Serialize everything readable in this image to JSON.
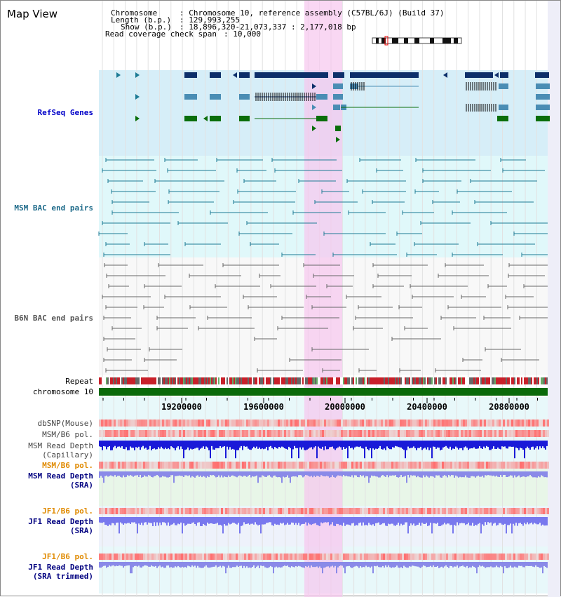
{
  "page": {
    "title": "Map View"
  },
  "info": {
    "chromosome_key": "Chromosome",
    "chromosome_val": ": Chromosome 10, reference assembly (C57BL/6J) (Build 37)",
    "length_key": "Length (b.p.)",
    "length_val": ": 129,993,255",
    "show_key": "Show (b.p.)",
    "show_val": ": 18,896,320-21,073,337 : 2,177,018 bp",
    "span_key": "Read coverage check span",
    "span_val": ": 10,000"
  },
  "tracks": {
    "refseq": "RefSeq Genes",
    "msm_bac": "MSM BAC end pairs",
    "b6n_bac": "B6N BAC end pairs",
    "repeat": "Repeat",
    "chromosome": "chromosome 10",
    "dbsnp": "dbSNP(Mouse)",
    "msm_b6_pol": "MSM/B6 pol.",
    "msm_depth_cap_1": "MSM Read Depth",
    "msm_depth_cap_2": "(Capillary)",
    "msm_b6_pol2": "MSM/B6 pol.",
    "msm_depth_sra_1": "MSM Read Depth",
    "msm_depth_sra_2": "(SRA)",
    "jf1_b6_pol": "JF1/B6 pol.",
    "jf1_depth_sra_1": "JF1 Read Depth",
    "jf1_depth_sra_2": "(SRA)",
    "jf1_b6_pol2": "JF1/B6 pol.",
    "jf1_depth_trim_1": "JF1 Read Depth",
    "jf1_depth_trim_2": "(SRA trimmed)"
  },
  "axis": {
    "ticks": [
      "19200000",
      "19600000",
      "20000000",
      "20400000",
      "20800000"
    ]
  },
  "colors": {
    "refseq_bg": "#d6eef8",
    "msm_bg": "#e0f8fa",
    "b6n_bg": "#f8f8f8",
    "highlight": "#f7c6ee",
    "navy": "#0d2f6a",
    "steel": "#4a8db4",
    "green": "#0a6e0a",
    "teal": "#1d7a94",
    "gray": "#666666",
    "label_blue": "#0000c8",
    "label_teal": "#1f6b8a",
    "label_gray": "#555555",
    "label_orange": "#e08a00",
    "label_navy": "#000080"
  }
}
